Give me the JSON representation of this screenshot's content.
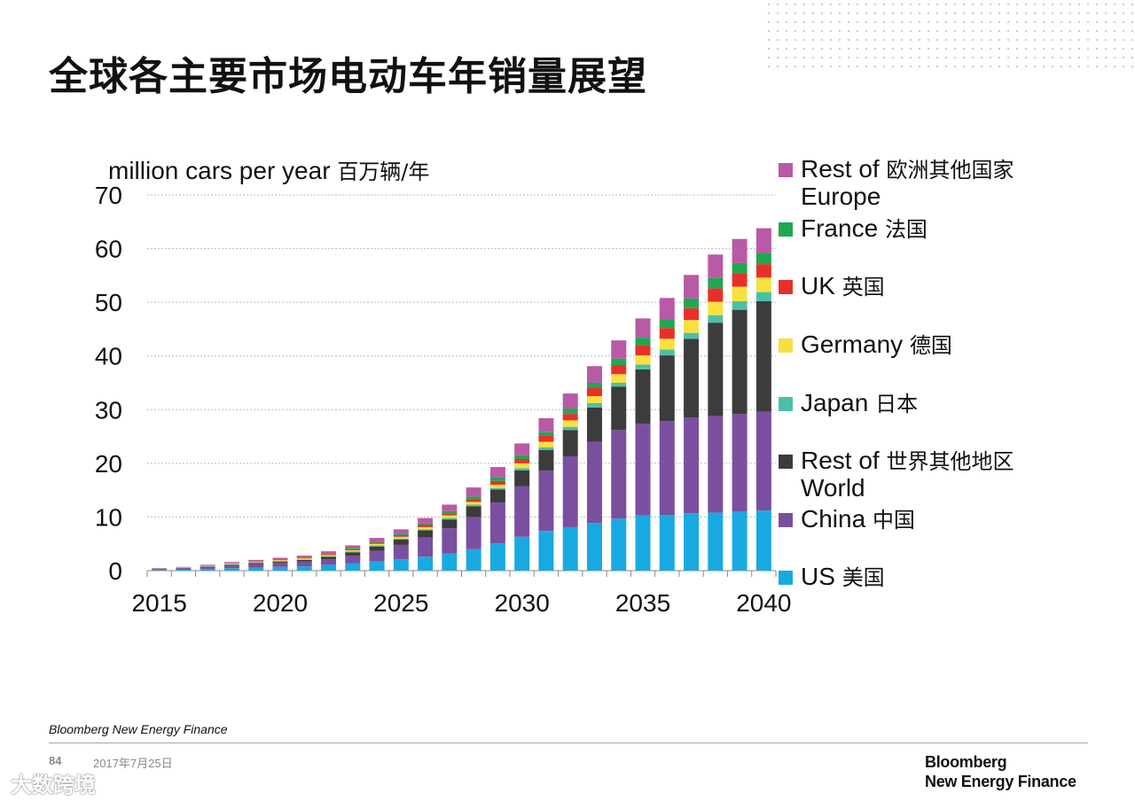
{
  "title": "全球各主要市场电动车年销量展望",
  "source": "Bloomberg New Energy Finance",
  "footer": {
    "page": "84",
    "date": "2017年7月25日"
  },
  "logo": {
    "line1": "Bloomberg",
    "line2": "New Energy Finance"
  },
  "watermark": "大数跨境",
  "chart_data": {
    "type": "bar",
    "stacked": true,
    "title": "全球各主要市场电动车年销量展望",
    "ylabel": "million cars per year",
    "ylabel_zh": "百万辆/年",
    "xlabel": "",
    "ylim": [
      0,
      70
    ],
    "yticks": [
      0,
      10,
      20,
      30,
      40,
      50,
      60,
      70
    ],
    "xtick_labels": [
      "2015",
      "2020",
      "2025",
      "2030",
      "2035",
      "2040"
    ],
    "grid": true,
    "legend_placement": "right",
    "categories": [
      2015,
      2016,
      2017,
      2018,
      2019,
      2020,
      2021,
      2022,
      2023,
      2024,
      2025,
      2026,
      2027,
      2028,
      2029,
      2030,
      2031,
      2032,
      2033,
      2034,
      2035,
      2036,
      2037,
      2038,
      2039,
      2040
    ],
    "series": [
      {
        "name": "US",
        "name_zh": "美国",
        "color": "#19a9e1",
        "values": [
          0.12,
          0.18,
          0.3,
          0.45,
          0.55,
          0.7,
          0.8,
          1.1,
          1.4,
          1.7,
          2.1,
          2.6,
          3.2,
          4.0,
          5.1,
          6.3,
          7.4,
          8.1,
          8.9,
          9.7,
          10.3,
          10.4,
          10.7,
          10.8,
          11.0,
          11.2
        ]
      },
      {
        "name": "China",
        "name_zh": "中国",
        "color": "#7b4fa0",
        "values": [
          0.18,
          0.27,
          0.4,
          0.55,
          0.7,
          0.8,
          0.9,
          1.0,
          1.4,
          2.0,
          2.7,
          3.6,
          4.7,
          6.0,
          7.6,
          9.4,
          11.2,
          13.2,
          15.1,
          16.5,
          17.1,
          17.5,
          17.8,
          18.0,
          18.2,
          18.4
        ]
      },
      {
        "name": "Rest of World",
        "name_zh": "世界其他地区",
        "color": "#3c3c3c",
        "values": [
          0.04,
          0.05,
          0.08,
          0.1,
          0.15,
          0.2,
          0.3,
          0.5,
          0.6,
          0.8,
          1.0,
          1.3,
          1.6,
          2.0,
          2.4,
          3.0,
          3.9,
          4.9,
          6.4,
          8.1,
          10.1,
          12.2,
          14.7,
          17.4,
          19.4,
          20.6
        ]
      },
      {
        "name": "Japan",
        "name_zh": "日本",
        "color": "#4dbfa8",
        "values": [
          0.02,
          0.03,
          0.05,
          0.1,
          0.1,
          0.1,
          0.1,
          0.1,
          0.2,
          0.2,
          0.2,
          0.2,
          0.3,
          0.3,
          0.3,
          0.4,
          0.5,
          0.6,
          0.8,
          0.7,
          0.9,
          1.1,
          1.1,
          1.4,
          1.6,
          1.7
        ]
      },
      {
        "name": "Germany",
        "name_zh": "德国",
        "color": "#f7e040",
        "values": [
          0.03,
          0.04,
          0.07,
          0.1,
          0.1,
          0.15,
          0.2,
          0.2,
          0.2,
          0.3,
          0.3,
          0.4,
          0.5,
          0.5,
          0.6,
          0.9,
          1.0,
          1.2,
          1.3,
          1.6,
          1.7,
          2.0,
          2.4,
          2.5,
          2.7,
          2.7
        ]
      },
      {
        "name": "UK",
        "name_zh": "英国",
        "color": "#e8302a",
        "values": [
          0.02,
          0.03,
          0.05,
          0.07,
          0.1,
          0.1,
          0.1,
          0.2,
          0.2,
          0.2,
          0.3,
          0.4,
          0.4,
          0.5,
          0.7,
          0.8,
          1.1,
          1.2,
          1.6,
          1.7,
          1.9,
          2.0,
          2.2,
          2.5,
          2.5,
          2.5
        ]
      },
      {
        "name": "France",
        "name_zh": "法国",
        "color": "#1fa84f",
        "values": [
          0.02,
          0.03,
          0.04,
          0.05,
          0.1,
          0.1,
          0.1,
          0.1,
          0.2,
          0.2,
          0.3,
          0.3,
          0.4,
          0.5,
          0.7,
          0.7,
          0.7,
          1.0,
          0.9,
          1.2,
          1.4,
          1.6,
          1.8,
          1.9,
          1.9,
          2.1
        ]
      },
      {
        "name": "Rest of Europe",
        "name_zh": "欧洲其他国家",
        "color": "#b95aa6",
        "values": [
          0.07,
          0.07,
          0.11,
          0.18,
          0.2,
          0.25,
          0.3,
          0.4,
          0.5,
          0.7,
          0.8,
          1.0,
          1.2,
          1.7,
          1.9,
          2.2,
          2.6,
          2.8,
          3.1,
          3.4,
          3.6,
          4.0,
          4.4,
          4.4,
          4.5,
          4.6
        ]
      }
    ],
    "legend": [
      {
        "label": "Rest of Europe",
        "zh": "欧洲其他国家",
        "line1": "Rest of",
        "line2": "Europe",
        "color": "#b95aa6"
      },
      {
        "label": "France",
        "zh": "法国",
        "color": "#1fa84f"
      },
      {
        "label": "UK",
        "zh": "英国",
        "color": "#e8302a"
      },
      {
        "label": "Germany",
        "zh": "德国",
        "color": "#f7e040"
      },
      {
        "label": "Japan",
        "zh": "日本",
        "color": "#4dbfa8"
      },
      {
        "label": "Rest of World",
        "zh": "世界其他地区",
        "line1": "Rest of",
        "line2": "World",
        "color": "#3c3c3c"
      },
      {
        "label": "China",
        "zh": "中国",
        "color": "#7b4fa0"
      },
      {
        "label": "US",
        "zh": "美国",
        "color": "#19a9e1"
      }
    ]
  }
}
